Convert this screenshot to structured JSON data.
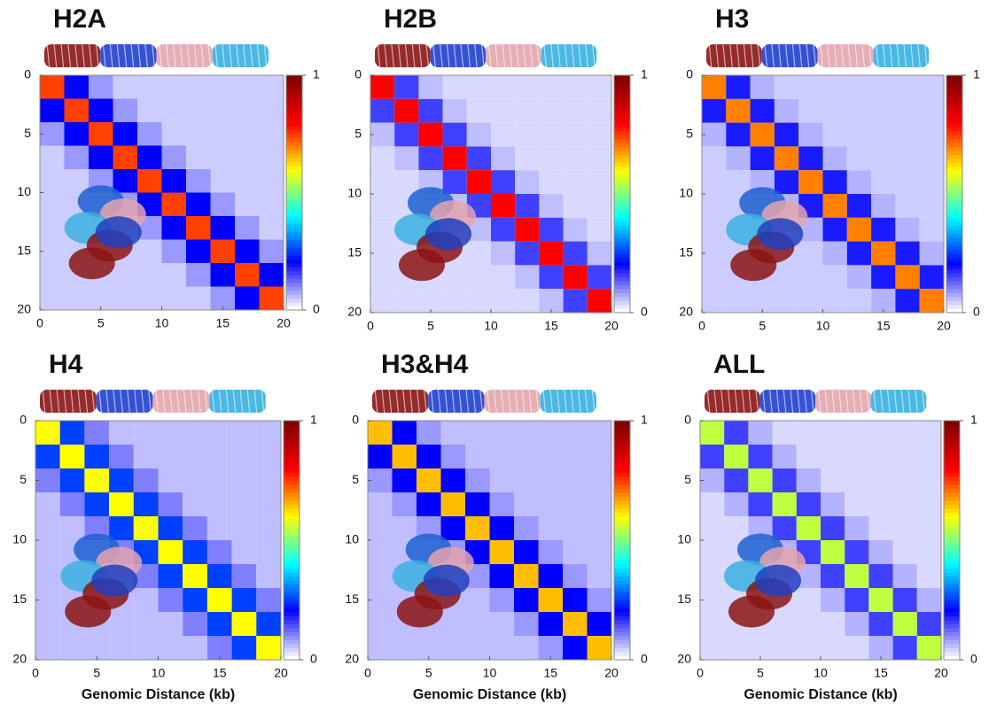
{
  "chart_data": [
    {
      "type": "heatmap",
      "title": "H2A",
      "xlim": [
        0,
        20
      ],
      "ylim": [
        0,
        20
      ],
      "y_inverted": true,
      "xticks": [
        0,
        5,
        10,
        15,
        20
      ],
      "yticks": [
        0,
        5,
        10,
        15,
        20
      ],
      "clim": [
        0,
        1
      ],
      "cticks": [
        0,
        1
      ],
      "colormap": [
        "#ffffff",
        "#0000ff",
        "#00ffff",
        "#ffff00",
        "#ff0000",
        "#7f0000"
      ],
      "values": [
        [
          0.75,
          0.2,
          0.08,
          0.04,
          0.04,
          0.04,
          0.04,
          0.04,
          0.04,
          0.04
        ],
        [
          0.2,
          0.75,
          0.2,
          0.08,
          0.04,
          0.04,
          0.04,
          0.04,
          0.04,
          0.04
        ],
        [
          0.08,
          0.2,
          0.75,
          0.2,
          0.08,
          0.04,
          0.04,
          0.04,
          0.04,
          0.04
        ],
        [
          0.04,
          0.08,
          0.2,
          0.75,
          0.2,
          0.08,
          0.04,
          0.04,
          0.04,
          0.04
        ],
        [
          0.04,
          0.04,
          0.08,
          0.2,
          0.75,
          0.2,
          0.08,
          0.04,
          0.04,
          0.04
        ],
        [
          0.04,
          0.04,
          0.04,
          0.08,
          0.2,
          0.75,
          0.2,
          0.08,
          0.04,
          0.04
        ],
        [
          0.04,
          0.04,
          0.04,
          0.04,
          0.08,
          0.2,
          0.75,
          0.2,
          0.08,
          0.04
        ],
        [
          0.04,
          0.04,
          0.04,
          0.04,
          0.04,
          0.08,
          0.2,
          0.75,
          0.2,
          0.08
        ],
        [
          0.04,
          0.04,
          0.04,
          0.04,
          0.04,
          0.04,
          0.08,
          0.2,
          0.75,
          0.2
        ],
        [
          0.04,
          0.04,
          0.04,
          0.04,
          0.04,
          0.04,
          0.04,
          0.08,
          0.2,
          0.75
        ]
      ]
    },
    {
      "type": "heatmap",
      "title": "H2B",
      "xlim": [
        0,
        20
      ],
      "ylim": [
        0,
        20
      ],
      "y_inverted": true,
      "xticks": [
        0,
        5,
        10,
        15,
        20
      ],
      "yticks": [
        0,
        5,
        10,
        15,
        20
      ],
      "clim": [
        0,
        1
      ],
      "cticks": [
        0,
        1
      ],
      "colormap": [
        "#ffffff",
        "#0000ff",
        "#00ffff",
        "#ffff00",
        "#ff0000",
        "#7f0000"
      ],
      "values": [
        [
          0.8,
          0.15,
          0.05,
          0.03,
          0.03,
          0.03,
          0.03,
          0.03,
          0.03,
          0.03
        ],
        [
          0.15,
          0.8,
          0.15,
          0.05,
          0.03,
          0.03,
          0.03,
          0.03,
          0.03,
          0.03
        ],
        [
          0.05,
          0.15,
          0.8,
          0.15,
          0.05,
          0.03,
          0.03,
          0.03,
          0.03,
          0.03
        ],
        [
          0.03,
          0.05,
          0.15,
          0.8,
          0.15,
          0.05,
          0.03,
          0.03,
          0.03,
          0.03
        ],
        [
          0.03,
          0.03,
          0.05,
          0.15,
          0.8,
          0.15,
          0.05,
          0.03,
          0.03,
          0.03
        ],
        [
          0.03,
          0.03,
          0.03,
          0.05,
          0.15,
          0.8,
          0.15,
          0.05,
          0.03,
          0.03
        ],
        [
          0.03,
          0.03,
          0.03,
          0.03,
          0.05,
          0.15,
          0.8,
          0.15,
          0.05,
          0.03
        ],
        [
          0.03,
          0.03,
          0.03,
          0.03,
          0.03,
          0.05,
          0.15,
          0.8,
          0.15,
          0.05
        ],
        [
          0.03,
          0.03,
          0.03,
          0.03,
          0.03,
          0.03,
          0.05,
          0.15,
          0.8,
          0.15
        ],
        [
          0.03,
          0.03,
          0.03,
          0.03,
          0.03,
          0.03,
          0.03,
          0.05,
          0.15,
          0.8
        ]
      ]
    },
    {
      "type": "heatmap",
      "title": "H3",
      "xlim": [
        0,
        20
      ],
      "ylim": [
        0,
        20
      ],
      "y_inverted": true,
      "xticks": [
        0,
        5,
        10,
        15,
        20
      ],
      "yticks": [
        0,
        5,
        10,
        15,
        20
      ],
      "clim": [
        0,
        1
      ],
      "cticks": [
        0,
        1
      ],
      "colormap": [
        "#ffffff",
        "#0000ff",
        "#00ffff",
        "#ffff00",
        "#ff0000",
        "#7f0000"
      ],
      "values": [
        [
          0.7,
          0.18,
          0.06,
          0.04,
          0.04,
          0.04,
          0.04,
          0.04,
          0.04,
          0.04
        ],
        [
          0.18,
          0.7,
          0.18,
          0.06,
          0.04,
          0.04,
          0.04,
          0.04,
          0.04,
          0.04
        ],
        [
          0.06,
          0.18,
          0.7,
          0.18,
          0.06,
          0.04,
          0.04,
          0.04,
          0.04,
          0.04
        ],
        [
          0.04,
          0.06,
          0.18,
          0.7,
          0.18,
          0.06,
          0.04,
          0.04,
          0.04,
          0.04
        ],
        [
          0.04,
          0.04,
          0.06,
          0.18,
          0.7,
          0.18,
          0.06,
          0.04,
          0.04,
          0.04
        ],
        [
          0.04,
          0.04,
          0.04,
          0.06,
          0.18,
          0.7,
          0.18,
          0.06,
          0.04,
          0.04
        ],
        [
          0.04,
          0.04,
          0.04,
          0.04,
          0.06,
          0.18,
          0.7,
          0.18,
          0.06,
          0.04
        ],
        [
          0.04,
          0.04,
          0.04,
          0.04,
          0.04,
          0.06,
          0.18,
          0.7,
          0.18,
          0.06
        ],
        [
          0.04,
          0.04,
          0.04,
          0.04,
          0.04,
          0.04,
          0.06,
          0.18,
          0.7,
          0.18
        ],
        [
          0.04,
          0.04,
          0.04,
          0.04,
          0.04,
          0.04,
          0.04,
          0.06,
          0.18,
          0.7
        ]
      ]
    },
    {
      "type": "heatmap",
      "title": "H4",
      "xlabel": "Genomic Distance (kb)",
      "xlim": [
        0,
        20
      ],
      "ylim": [
        0,
        20
      ],
      "y_inverted": true,
      "xticks": [
        0,
        5,
        10,
        15,
        20
      ],
      "yticks": [
        0,
        5,
        10,
        15,
        20
      ],
      "clim": [
        0,
        1
      ],
      "cticks": [
        0,
        1
      ],
      "colormap": [
        "#ffffff",
        "#0000ff",
        "#00ffff",
        "#ffff00",
        "#ff0000",
        "#7f0000"
      ],
      "values": [
        [
          0.6,
          0.25,
          0.1,
          0.05,
          0.05,
          0.05,
          0.05,
          0.05,
          0.05,
          0.05
        ],
        [
          0.25,
          0.6,
          0.25,
          0.1,
          0.05,
          0.05,
          0.05,
          0.05,
          0.05,
          0.05
        ],
        [
          0.1,
          0.25,
          0.6,
          0.25,
          0.1,
          0.05,
          0.05,
          0.05,
          0.05,
          0.05
        ],
        [
          0.05,
          0.1,
          0.25,
          0.6,
          0.25,
          0.1,
          0.05,
          0.05,
          0.05,
          0.05
        ],
        [
          0.05,
          0.05,
          0.1,
          0.25,
          0.6,
          0.25,
          0.1,
          0.05,
          0.05,
          0.05
        ],
        [
          0.05,
          0.05,
          0.05,
          0.1,
          0.25,
          0.6,
          0.25,
          0.1,
          0.05,
          0.05
        ],
        [
          0.05,
          0.05,
          0.05,
          0.05,
          0.1,
          0.25,
          0.6,
          0.25,
          0.1,
          0.05
        ],
        [
          0.05,
          0.05,
          0.05,
          0.05,
          0.05,
          0.1,
          0.25,
          0.6,
          0.25,
          0.1
        ],
        [
          0.05,
          0.05,
          0.05,
          0.05,
          0.05,
          0.05,
          0.1,
          0.25,
          0.6,
          0.25
        ],
        [
          0.05,
          0.05,
          0.05,
          0.05,
          0.05,
          0.05,
          0.05,
          0.1,
          0.25,
          0.6
        ]
      ]
    },
    {
      "type": "heatmap",
      "title": "H3&H4",
      "xlabel": "Genomic Distance (kb)",
      "xlim": [
        0,
        20
      ],
      "ylim": [
        0,
        20
      ],
      "y_inverted": true,
      "xticks": [
        0,
        5,
        10,
        15,
        20
      ],
      "yticks": [
        0,
        5,
        10,
        15,
        20
      ],
      "clim": [
        0,
        1
      ],
      "cticks": [
        0,
        1
      ],
      "colormap": [
        "#ffffff",
        "#0000ff",
        "#00ffff",
        "#ffff00",
        "#ff0000",
        "#7f0000"
      ],
      "values": [
        [
          0.65,
          0.2,
          0.08,
          0.05,
          0.05,
          0.05,
          0.05,
          0.05,
          0.05,
          0.05
        ],
        [
          0.2,
          0.65,
          0.2,
          0.08,
          0.05,
          0.05,
          0.05,
          0.05,
          0.05,
          0.05
        ],
        [
          0.08,
          0.2,
          0.65,
          0.2,
          0.08,
          0.05,
          0.05,
          0.05,
          0.05,
          0.05
        ],
        [
          0.05,
          0.08,
          0.2,
          0.65,
          0.2,
          0.08,
          0.05,
          0.05,
          0.05,
          0.05
        ],
        [
          0.05,
          0.05,
          0.08,
          0.2,
          0.65,
          0.2,
          0.08,
          0.05,
          0.05,
          0.05
        ],
        [
          0.05,
          0.05,
          0.05,
          0.08,
          0.2,
          0.65,
          0.2,
          0.08,
          0.05,
          0.05
        ],
        [
          0.05,
          0.05,
          0.05,
          0.05,
          0.08,
          0.2,
          0.65,
          0.2,
          0.08,
          0.05
        ],
        [
          0.05,
          0.05,
          0.05,
          0.05,
          0.05,
          0.08,
          0.2,
          0.65,
          0.2,
          0.08
        ],
        [
          0.05,
          0.05,
          0.05,
          0.05,
          0.05,
          0.05,
          0.08,
          0.2,
          0.65,
          0.2
        ],
        [
          0.05,
          0.05,
          0.05,
          0.05,
          0.05,
          0.05,
          0.05,
          0.08,
          0.2,
          0.65
        ]
      ]
    },
    {
      "type": "heatmap",
      "title": "ALL",
      "xlabel": "Genomic Distance (kb)",
      "xlim": [
        0,
        20
      ],
      "ylim": [
        0,
        20
      ],
      "y_inverted": true,
      "xticks": [
        0,
        5,
        10,
        15,
        20
      ],
      "yticks": [
        0,
        5,
        10,
        15,
        20
      ],
      "clim": [
        0,
        1
      ],
      "cticks": [
        0,
        1
      ],
      "colormap": [
        "#ffffff",
        "#0000ff",
        "#00ffff",
        "#ffff00",
        "#ff0000",
        "#7f0000"
      ],
      "values": [
        [
          0.55,
          0.15,
          0.06,
          0.03,
          0.03,
          0.03,
          0.03,
          0.03,
          0.03,
          0.03
        ],
        [
          0.15,
          0.55,
          0.15,
          0.06,
          0.03,
          0.03,
          0.03,
          0.03,
          0.03,
          0.03
        ],
        [
          0.06,
          0.15,
          0.55,
          0.15,
          0.06,
          0.03,
          0.03,
          0.03,
          0.03,
          0.03
        ],
        [
          0.03,
          0.06,
          0.15,
          0.55,
          0.15,
          0.06,
          0.03,
          0.03,
          0.03,
          0.03
        ],
        [
          0.03,
          0.03,
          0.06,
          0.15,
          0.55,
          0.15,
          0.06,
          0.03,
          0.03,
          0.03
        ],
        [
          0.03,
          0.03,
          0.03,
          0.06,
          0.15,
          0.55,
          0.15,
          0.06,
          0.03,
          0.03
        ],
        [
          0.03,
          0.03,
          0.03,
          0.03,
          0.06,
          0.15,
          0.55,
          0.15,
          0.06,
          0.03
        ],
        [
          0.03,
          0.03,
          0.03,
          0.03,
          0.03,
          0.06,
          0.15,
          0.55,
          0.15,
          0.06
        ],
        [
          0.03,
          0.03,
          0.03,
          0.03,
          0.03,
          0.03,
          0.06,
          0.15,
          0.55,
          0.15
        ],
        [
          0.03,
          0.03,
          0.03,
          0.03,
          0.03,
          0.03,
          0.03,
          0.06,
          0.15,
          0.55
        ]
      ]
    }
  ]
}
